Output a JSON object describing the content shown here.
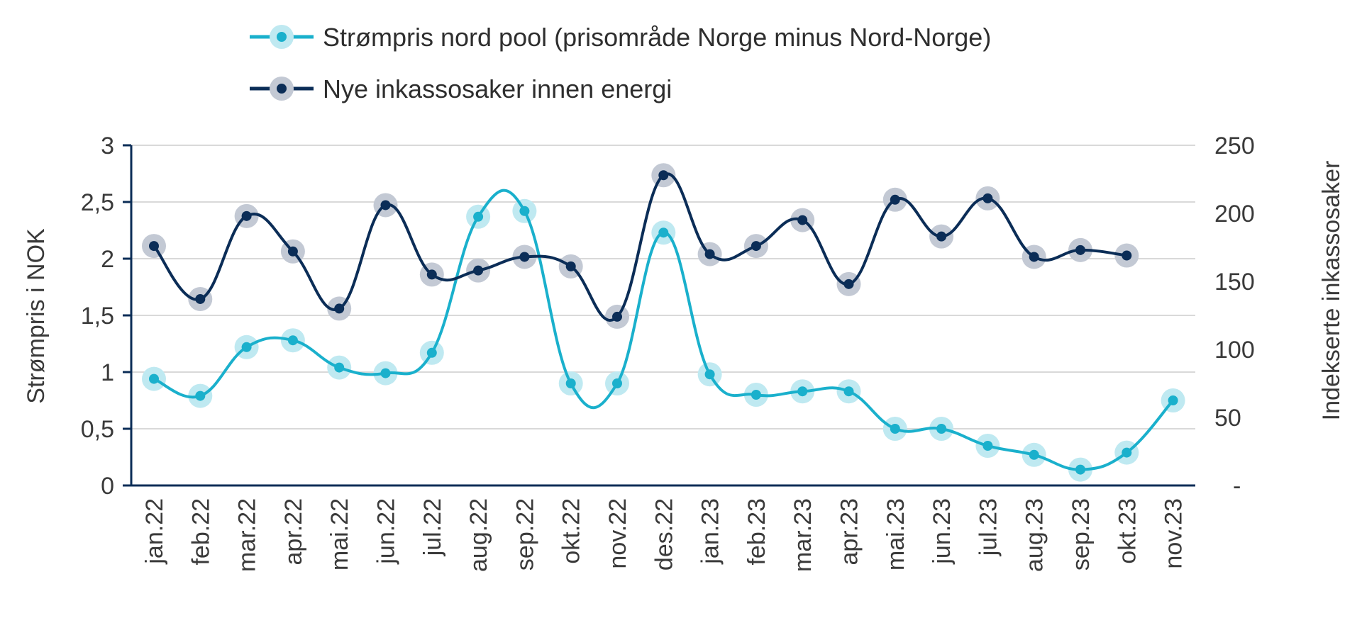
{
  "chart_data": {
    "type": "line",
    "title": "",
    "categories": [
      "jan.22",
      "feb.22",
      "mar.22",
      "apr.22",
      "mai.22",
      "jun.22",
      "jul.22",
      "aug.22",
      "sep.22",
      "okt.22",
      "nov.22",
      "des.22",
      "jan.23",
      "feb.23",
      "mar.23",
      "apr.23",
      "mai.23",
      "jun.23",
      "jul.23",
      "aug.23",
      "sep.23",
      "okt.23",
      "nov.23"
    ],
    "ylabel": "Strømpris i NOK",
    "y2label": "Indekserte inkassosaker",
    "ylim": [
      0,
      3
    ],
    "y2lim": [
      0,
      250
    ],
    "yticks": [
      "0",
      "0,5",
      "1",
      "1,5",
      "2",
      "2,5",
      "3"
    ],
    "y2ticks": [
      "-",
      "50",
      "100",
      "150",
      "200",
      "250"
    ],
    "grid": true,
    "legend_position": "top",
    "series": [
      {
        "name": "Strømpris nord pool (prisområde Norge minus Nord-Norge)",
        "axis": "left",
        "color": "#1ab0cc",
        "halo": "#bfe9f1",
        "values": [
          0.94,
          0.79,
          1.22,
          1.28,
          1.04,
          0.99,
          1.17,
          2.37,
          2.42,
          0.9,
          0.9,
          2.23,
          0.98,
          0.8,
          0.83,
          0.83,
          0.5,
          0.5,
          0.35,
          0.27,
          0.14,
          0.29,
          0.75
        ]
      },
      {
        "name": "Nye inkassosaker innen energi",
        "axis": "right",
        "color": "#0b2d57",
        "halo": "#c3c9d4",
        "values": [
          176,
          137,
          198,
          172,
          130,
          206,
          155,
          158,
          168,
          161,
          124,
          228,
          170,
          176,
          195,
          148,
          210,
          183,
          211,
          168,
          173,
          169,
          null
        ]
      }
    ]
  }
}
